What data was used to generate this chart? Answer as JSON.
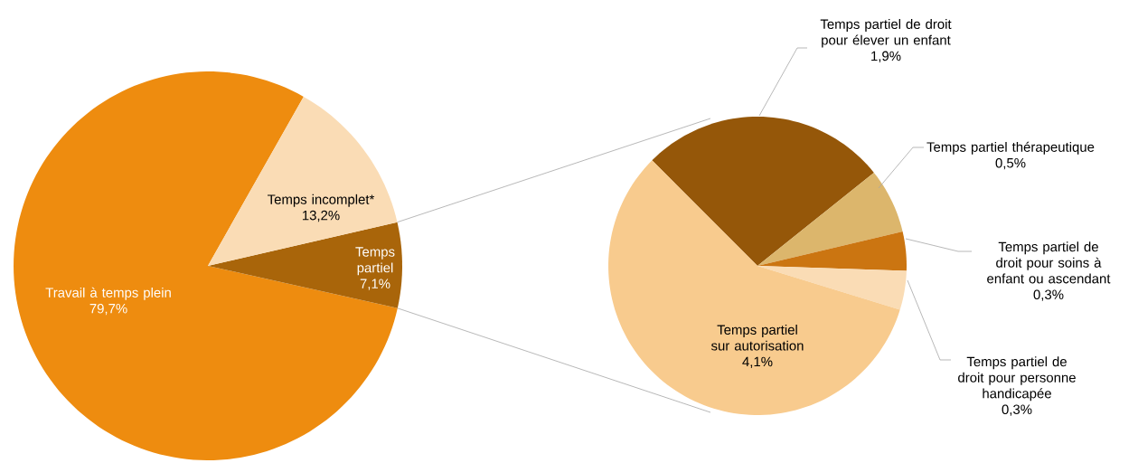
{
  "chart_data": [
    {
      "type": "pie",
      "categories": [
        "Travail à temps plein",
        "Temps partiel",
        "Temps incomplet*"
      ],
      "values": [
        79.7,
        7.1,
        13.2
      ],
      "colors": [
        "#ee8c0f",
        "#a9650a",
        "#fadcb5"
      ],
      "value_labels": [
        "79,7%",
        "7,1%",
        "13,2%"
      ]
    },
    {
      "type": "pie",
      "categories": [
        "Temps partiel de droit pour élever un enfant",
        "Temps partiel thérapeutique",
        "Temps partiel de droit pour soins à enfant ou ascendant",
        "Temps partiel de droit pour personne handicapée",
        "Temps partiel sur autorisation"
      ],
      "values": [
        1.9,
        0.5,
        0.3,
        0.3,
        4.1
      ],
      "colors": [
        "#955709",
        "#dcb66c",
        "#cb7511",
        "#fadcb5",
        "#f8cb8e"
      ],
      "value_labels": [
        "1,9%",
        "0,5%",
        "0,3%",
        "0,3%",
        "4,1%"
      ]
    }
  ]
}
